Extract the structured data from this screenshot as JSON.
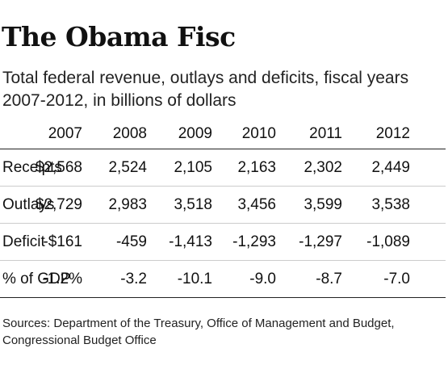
{
  "chart_data": {
    "type": "table",
    "title": "The Obama Fisc",
    "subtitle": "Total federal revenue, outlays and deficits, fiscal years 2007-2012, in billions of dollars",
    "columns": [
      "2007",
      "2008",
      "2009",
      "2010",
      "2011",
      "2012"
    ],
    "rows": [
      {
        "label": "Receipts",
        "display": [
          "$2,568",
          "2,524",
          "2,105",
          "2,163",
          "2,302",
          "2,449"
        ],
        "values": [
          2568,
          2524,
          2105,
          2163,
          2302,
          2449
        ]
      },
      {
        "label": "Outlays",
        "display": [
          "$2,729",
          "2,983",
          "3,518",
          "3,456",
          "3,599",
          "3,538"
        ],
        "values": [
          2729,
          2983,
          3518,
          3456,
          3599,
          3538
        ]
      },
      {
        "label": "Deficit",
        "display": [
          "-$161",
          "-459",
          "-1,413",
          "-1,293",
          "-1,297",
          "-1,089"
        ],
        "values": [
          -161,
          -459,
          -1413,
          -1293,
          -1297,
          -1089
        ]
      },
      {
        "label": "% of GDP",
        "display": [
          "-1.2%",
          "-3.2",
          "-10.1",
          "-9.0",
          "-8.7",
          "-7.0"
        ],
        "values": [
          -1.2,
          -3.2,
          -10.1,
          -9.0,
          -8.7,
          -7.0
        ]
      }
    ],
    "source": "Sources: Department of the Treasury, Office of Management and Budget, Congressional Budget Office"
  }
}
